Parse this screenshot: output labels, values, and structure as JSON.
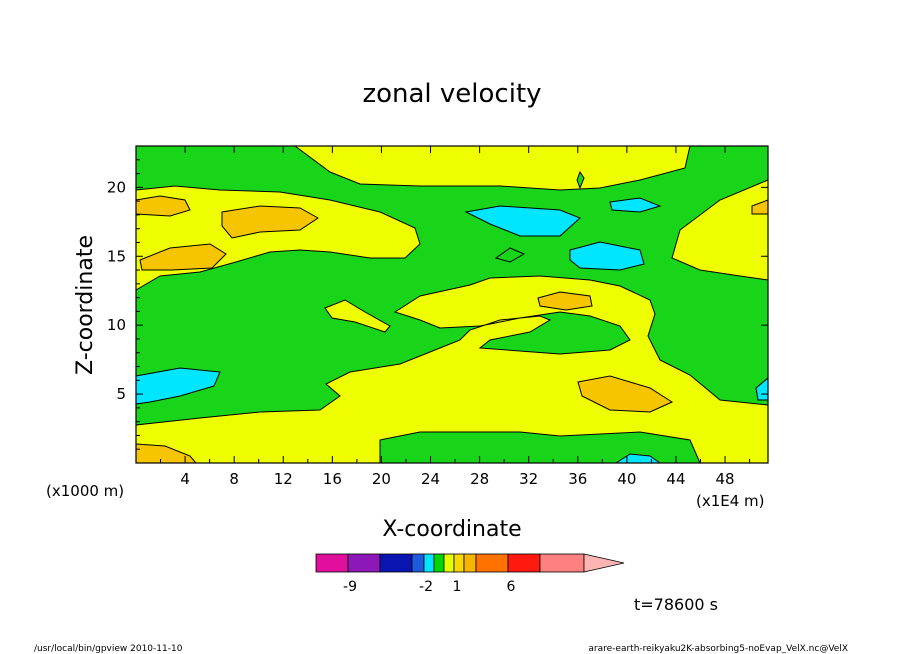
{
  "chart_data": {
    "type": "heatmap",
    "title": "zonal velocity",
    "xlabel": "X-coordinate",
    "ylabel": "Z-coordinate",
    "x_unit_left": "(x1000 m)",
    "x_unit_right": "(x1E4 m)",
    "xlim": [
      0,
      51.5
    ],
    "ylim": [
      0,
      23
    ],
    "x_ticks": [
      "4",
      "8",
      "12",
      "16",
      "20",
      "24",
      "28",
      "32",
      "36",
      "40",
      "44",
      "48"
    ],
    "y_ticks": [
      "5",
      "10",
      "15",
      "20"
    ],
    "x_tick_values": [
      4,
      8,
      12,
      16,
      20,
      24,
      28,
      32,
      36,
      40,
      44,
      48
    ],
    "y_tick_values": [
      5,
      10,
      15,
      20
    ],
    "time_label": "t=78600 s",
    "colorbar": {
      "labels": [
        "-9",
        "-2",
        "1",
        "6"
      ],
      "colors": [
        "#e0109c",
        "#8e17b8",
        "#0a14b0",
        "#1e5adc",
        "#00e4ff",
        "#00d600",
        "#e6ff00",
        "#f7d800",
        "#f7b400",
        "#ff7200",
        "#ff1a10",
        "#ff8080",
        "#ffb4b4"
      ]
    },
    "legend_colors": {
      "negative_small": "#00e6ff",
      "near_zero": "#19d51a",
      "positive_small": "#eefe00",
      "positive_medium": "#f7c400"
    }
  },
  "footer": {
    "left": "/usr/local/bin/gpview   2010-11-10",
    "right": "arare-earth-reikyaku2K-absorbing5-noEvap_VelX.nc@VelX"
  }
}
